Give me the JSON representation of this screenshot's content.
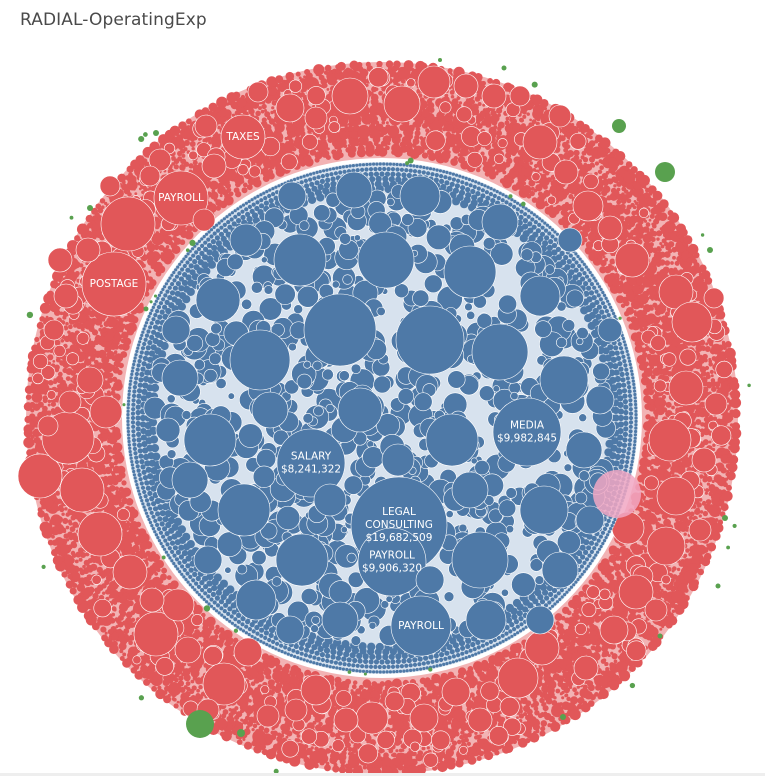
{
  "title": "RADIAL-OperatingExp",
  "colors": {
    "outer_ring": "#e15759",
    "inner_core": "#4e79a7",
    "accent_green": "#59a14f",
    "accent_pink": "#f1a7c3",
    "background": "#ffffff"
  },
  "chart_data": {
    "type": "bubble",
    "groups": [
      {
        "name": "",
        "color": "#e15759"
      },
      {
        "name": "",
        "color": "#4e79a7"
      },
      {
        "name": "",
        "color": "#59a14f"
      }
    ],
    "labeled_bubbles": [
      {
        "group": 1,
        "category": "LEGAL CONSULTING",
        "value": 19682509,
        "label_lines": [
          "LEGAL",
          "CONSULTING",
          "$19,682,509"
        ]
      },
      {
        "group": 1,
        "category": "MEDIA",
        "value": 9982845,
        "label_lines": [
          "MEDIA",
          "$9,982,845"
        ]
      },
      {
        "group": 1,
        "category": "PAYROLL",
        "value": 9906320,
        "label_lines": [
          "PAYROLL",
          "$9,906,320"
        ]
      },
      {
        "group": 1,
        "category": "SALARY",
        "value": 8241322,
        "label_lines": [
          "SALARY",
          "$8,241,322"
        ]
      },
      {
        "group": 1,
        "category": "PAYROLL",
        "value": null,
        "label_lines": [
          "PAYROLL"
        ]
      },
      {
        "group": 0,
        "category": "POSTAGE",
        "value": null,
        "label_lines": [
          "POSTAGE"
        ]
      },
      {
        "group": 0,
        "category": "PAYROLL",
        "value": null,
        "label_lines": [
          "PAYROLL"
        ]
      },
      {
        "group": 0,
        "category": "TAXES",
        "value": null,
        "label_lines": [
          "TAXES"
        ]
      }
    ]
  }
}
